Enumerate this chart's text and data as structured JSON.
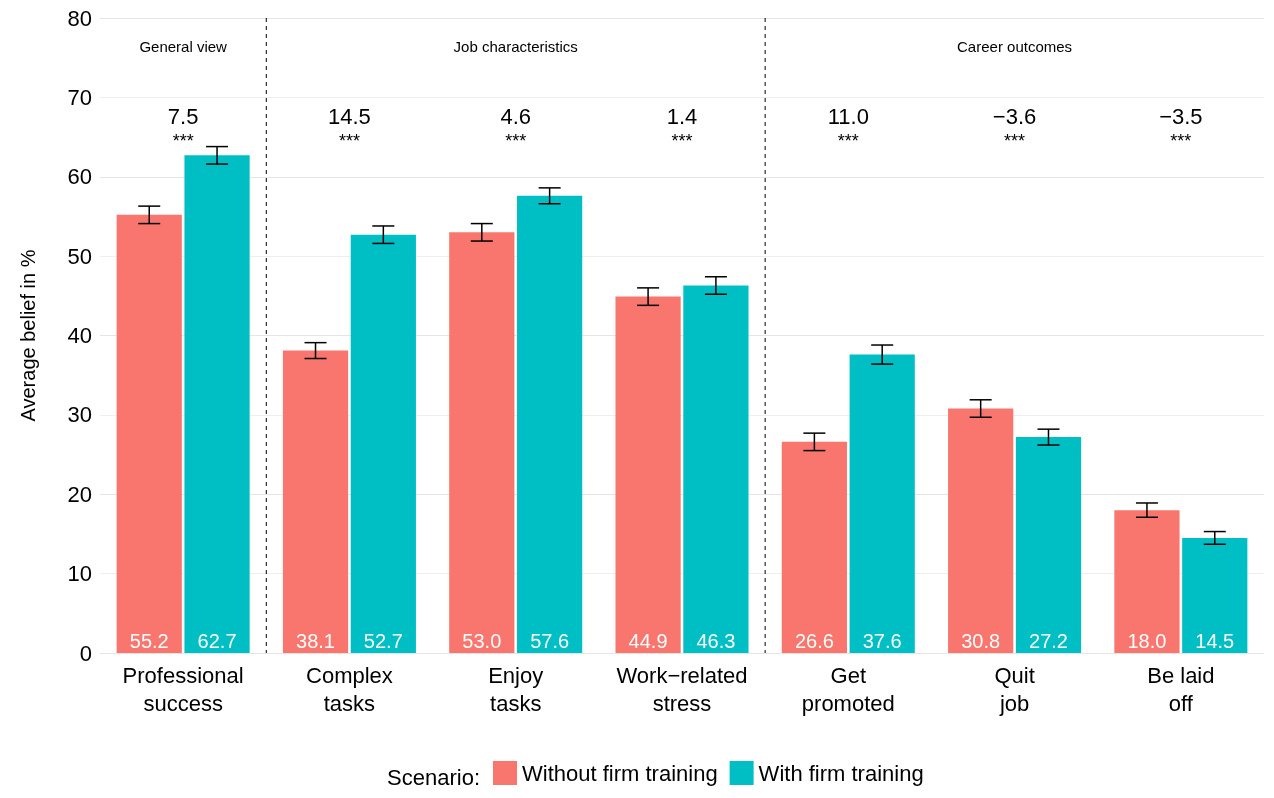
{
  "chart_data": {
    "type": "bar",
    "ylabel": "Average belief in %",
    "legend_title": "Scenario:",
    "categories": [
      "Professional\nsuccess",
      "Complex\ntasks",
      "Enjoy\ntasks",
      "Work−related\nstress",
      "Get\npromoted",
      "Quit\njob",
      "Be laid\noff"
    ],
    "series": [
      {
        "name": "Without firm training",
        "color": "#f8766d",
        "values": [
          55.2,
          38.1,
          53.0,
          44.9,
          26.6,
          30.8,
          18.0
        ],
        "value_labels": [
          "55.2",
          "38.1",
          "53.0",
          "44.9",
          "26.6",
          "30.8",
          "18.0"
        ],
        "errors": [
          1.1,
          1.0,
          1.1,
          1.1,
          1.1,
          1.1,
          0.9
        ]
      },
      {
        "name": "With firm training",
        "color": "#00bfc4",
        "values": [
          62.7,
          52.7,
          57.6,
          46.3,
          37.6,
          27.2,
          14.5
        ],
        "value_labels": [
          "62.7",
          "52.7",
          "57.6",
          "46.3",
          "37.6",
          "27.2",
          "14.5"
        ],
        "errors": [
          1.1,
          1.1,
          1.0,
          1.1,
          1.2,
          1.0,
          0.8
        ]
      }
    ],
    "ylim": [
      0,
      80
    ],
    "yticks": [
      0,
      10,
      20,
      30,
      40,
      50,
      60,
      70,
      80
    ],
    "grid": "y",
    "legend": "bottom",
    "annotations": [
      "General view",
      "Job characteristics",
      "Career outcomes",
      "7.5",
      "***",
      "14.5",
      "***",
      "4.6",
      "***",
      "1.4",
      "***",
      "11.0",
      "***",
      "−3.6",
      "***",
      "−3.5",
      "***"
    ]
  }
}
